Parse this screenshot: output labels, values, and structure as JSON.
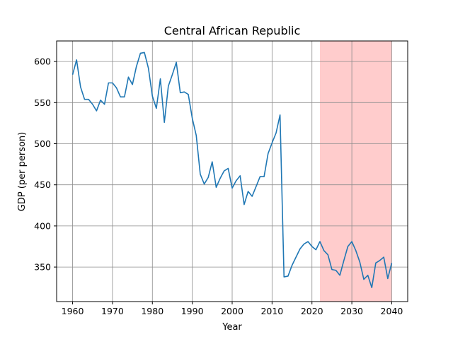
{
  "chart_data": {
    "type": "line",
    "title": "Central African Republic",
    "xlabel": "Year",
    "ylabel": "GDP (per person)",
    "xlim": [
      1956,
      2044
    ],
    "ylim": [
      308,
      625
    ],
    "xticks": [
      1960,
      1970,
      1980,
      1990,
      2000,
      2010,
      2020,
      2030,
      2040
    ],
    "yticks": [
      350,
      400,
      450,
      500,
      550,
      600
    ],
    "grid": true,
    "line_color": "#1f77b4",
    "highlight": {
      "x_start": 2022,
      "x_end": 2040,
      "color": "#ffcccc"
    },
    "series": [
      {
        "x": [
          1960,
          1961,
          1962,
          1963,
          1964,
          1965,
          1966,
          1967,
          1968,
          1969,
          1970,
          1971,
          1972,
          1973,
          1974,
          1975,
          1976,
          1977,
          1978,
          1979,
          1980,
          1981,
          1982,
          1983,
          1984,
          1985,
          1986,
          1987,
          1988,
          1989,
          1990,
          1991,
          1992,
          1993,
          1994,
          1995,
          1996,
          1997,
          1998,
          1999,
          2000,
          2001,
          2002,
          2003,
          2004,
          2005,
          2006,
          2007,
          2008,
          2009,
          2010,
          2011,
          2012,
          2013,
          2014,
          2015,
          2016,
          2017,
          2018,
          2019,
          2020,
          2021,
          2022,
          2023,
          2024,
          2025,
          2026,
          2027,
          2028,
          2029,
          2030,
          2031,
          2032,
          2033,
          2034,
          2035,
          2036,
          2037,
          2038,
          2039,
          2040
        ],
        "values": [
          584,
          602,
          569,
          554,
          554,
          548,
          540,
          553,
          548,
          574,
          574,
          568,
          557,
          557,
          581,
          572,
          594,
          610,
          611,
          592,
          558,
          543,
          579,
          526,
          570,
          584,
          599,
          562,
          563,
          560,
          531,
          510,
          463,
          451,
          459,
          478,
          447,
          458,
          467,
          470,
          446,
          455,
          461,
          426,
          442,
          436,
          448,
          460,
          460,
          488,
          501,
          513,
          535,
          338,
          339,
          352,
          362,
          372,
          378,
          381,
          375,
          371,
          381,
          370,
          365,
          347,
          346,
          340,
          358,
          375,
          381,
          370,
          356,
          335,
          340,
          325,
          355,
          358,
          362,
          336,
          355
        ]
      }
    ]
  }
}
